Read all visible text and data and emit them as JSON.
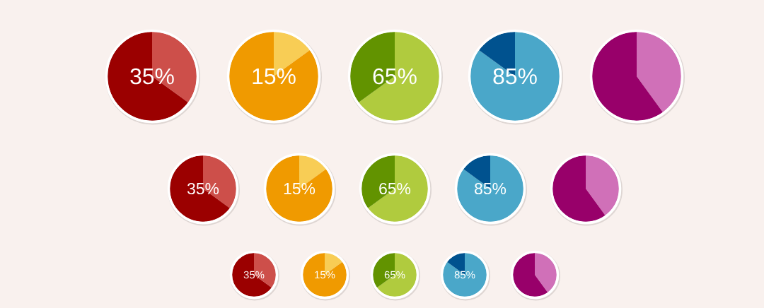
{
  "chart_data": [
    {
      "type": "pie",
      "categories": [
        null,
        null
      ],
      "values": [
        35,
        65
      ],
      "colors": [
        "#cd4f4a",
        "#9b0000"
      ],
      "annotations": [
        "35%"
      ]
    },
    {
      "type": "pie",
      "categories": [
        null,
        null
      ],
      "values": [
        15,
        85
      ],
      "colors": [
        "#f8cd55",
        "#f09a00"
      ],
      "annotations": [
        "15%"
      ]
    },
    {
      "type": "pie",
      "categories": [
        null,
        null
      ],
      "values": [
        65,
        35
      ],
      "colors": [
        "#b0cb3e",
        "#629300"
      ],
      "annotations": [
        "65%"
      ]
    },
    {
      "type": "pie",
      "categories": [
        null,
        null
      ],
      "values": [
        85,
        15
      ],
      "colors": [
        "#4aa7c9",
        "#00528f"
      ],
      "annotations": [
        "85%"
      ]
    },
    {
      "type": "pie",
      "categories": [
        null,
        null
      ],
      "values": [
        40,
        60
      ],
      "colors": [
        "#d070b8",
        "#98006a"
      ]
    },
    {
      "type": "pie",
      "categories": [
        null,
        null
      ],
      "values": [
        35,
        65
      ],
      "colors": [
        "#cd4f4a",
        "#9b0000"
      ],
      "annotations": [
        "35%"
      ]
    },
    {
      "type": "pie",
      "categories": [
        null,
        null
      ],
      "values": [
        15,
        85
      ],
      "colors": [
        "#f8cd55",
        "#f09a00"
      ],
      "annotations": [
        "15%"
      ]
    },
    {
      "type": "pie",
      "categories": [
        null,
        null
      ],
      "values": [
        65,
        35
      ],
      "colors": [
        "#b0cb3e",
        "#629300"
      ],
      "annotations": [
        "65%"
      ]
    },
    {
      "type": "pie",
      "categories": [
        null,
        null
      ],
      "values": [
        85,
        15
      ],
      "colors": [
        "#4aa7c9",
        "#00528f"
      ],
      "annotations": [
        "85%"
      ]
    },
    {
      "type": "pie",
      "categories": [
        null,
        null
      ],
      "values": [
        40,
        60
      ],
      "colors": [
        "#d070b8",
        "#98006a"
      ]
    },
    {
      "type": "pie",
      "categories": [
        null,
        null
      ],
      "values": [
        35,
        65
      ],
      "colors": [
        "#cd4f4a",
        "#9b0000"
      ],
      "annotations": [
        "35%"
      ]
    },
    {
      "type": "pie",
      "categories": [
        null,
        null
      ],
      "values": [
        15,
        85
      ],
      "colors": [
        "#f8cd55",
        "#f09a00"
      ],
      "annotations": [
        "15%"
      ]
    },
    {
      "type": "pie",
      "categories": [
        null,
        null
      ],
      "values": [
        65,
        35
      ],
      "colors": [
        "#b0cb3e",
        "#629300"
      ],
      "annotations": [
        "65%"
      ]
    },
    {
      "type": "pie",
      "categories": [
        null,
        null
      ],
      "values": [
        85,
        15
      ],
      "colors": [
        "#4aa7c9",
        "#00528f"
      ],
      "annotations": [
        "85%"
      ]
    },
    {
      "type": "pie",
      "categories": [
        null,
        null
      ],
      "values": [
        40,
        60
      ],
      "colors": [
        "#d070b8",
        "#98006a"
      ]
    }
  ]
}
